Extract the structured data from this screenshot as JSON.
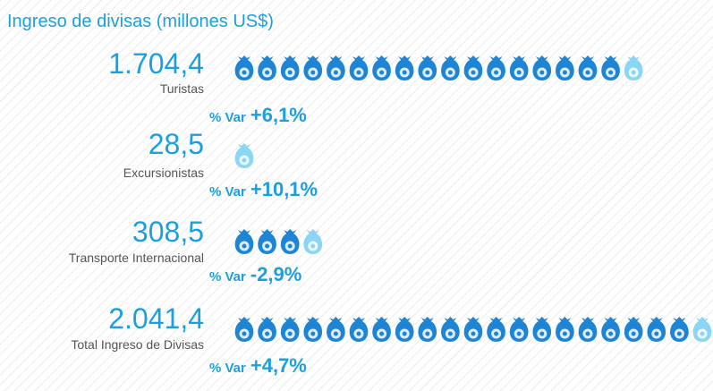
{
  "chart_data": {
    "type": "pictogram",
    "title": "Ingreso de divisas (millones US$)",
    "categories": [
      "Turistas",
      "Excursionistas",
      "Transporte Internacional",
      "Total Ingreso de Divisas"
    ],
    "values": [
      1704.4,
      28.5,
      308.5,
      2041.4
    ],
    "value_labels": [
      "1.704,4",
      "28,5",
      "308,5",
      "2.041,4"
    ],
    "change_label": "% Var",
    "changes": [
      6.1,
      10.1,
      -2.9,
      4.7
    ],
    "change_labels": [
      "+6,1%",
      "+10,1%",
      "-2,9%",
      "+4,7%"
    ],
    "color": "#1aa0e0",
    "icon_color": "#1e84d4",
    "partial_icon_color": "#8ad6f4"
  }
}
